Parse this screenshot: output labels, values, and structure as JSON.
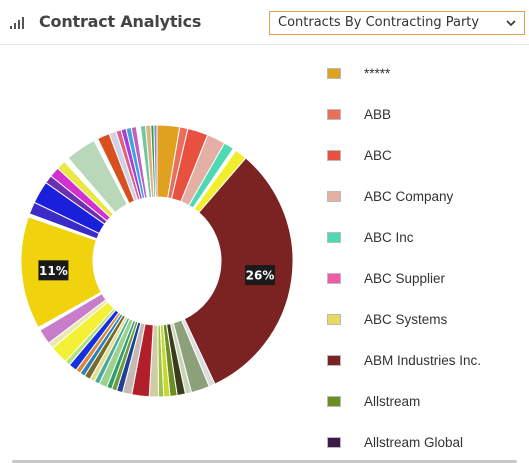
{
  "header": {
    "title": "Contract Analytics",
    "select_value": "Contracts By Contracting Party"
  },
  "chart_data": {
    "type": "pie",
    "donut": true,
    "slices": [
      {
        "label": "*****",
        "value": 2.2,
        "color": "#E0A020"
      },
      {
        "label": "ABB",
        "value": 0.8,
        "color": "#E8705A"
      },
      {
        "label": "ABC",
        "value": 2.0,
        "color": "#E8503F"
      },
      {
        "label": "ABC Company",
        "value": 1.8,
        "color": "#E4AFA5"
      },
      {
        "label": "ABC Inc",
        "value": 1.0,
        "color": "#4ED9B3"
      },
      {
        "label": "",
        "value": 0.3,
        "color": "#FFFFFF"
      },
      {
        "label": "ABC Systems",
        "value": 1.2,
        "color": "#F2EE2C"
      },
      {
        "label": "ABM Industries Inc.",
        "value": 26,
        "color": "#7B2222"
      },
      {
        "label": "",
        "value": 0.6,
        "color": "#DCDCDC"
      },
      {
        "label": "",
        "value": 1.8,
        "color": "#8CA07A"
      },
      {
        "label": "",
        "value": 0.6,
        "color": "#C8D6B8"
      },
      {
        "label": "",
        "value": 0.8,
        "color": "#3C3C1C"
      },
      {
        "label": "Allstream",
        "value": 0.7,
        "color": "#6A8E23"
      },
      {
        "label": "",
        "value": 0.6,
        "color": "#C8D830"
      },
      {
        "label": "",
        "value": 0.5,
        "color": "#9BC53D"
      },
      {
        "label": "",
        "value": 0.9,
        "color": "#D0CCA8"
      },
      {
        "label": "",
        "value": 1.7,
        "color": "#B21F2A"
      },
      {
        "label": "",
        "value": 0.9,
        "color": "#C5BAB3"
      },
      {
        "label": "",
        "value": 0.6,
        "color": "#1F3F99"
      },
      {
        "label": "",
        "value": 0.5,
        "color": "#6F9A3A"
      },
      {
        "label": "",
        "value": 0.5,
        "color": "#2E9E6B"
      },
      {
        "label": "",
        "value": 0.8,
        "color": "#9DD28E"
      },
      {
        "label": "",
        "value": 0.5,
        "color": "#4BA8A0"
      },
      {
        "label": "",
        "value": 0.5,
        "color": "#E0E090"
      },
      {
        "label": "",
        "value": 0.6,
        "color": "#7A6A2A"
      },
      {
        "label": "",
        "value": 0.5,
        "color": "#2C7FB8"
      },
      {
        "label": "",
        "value": 0.5,
        "color": "#D88A40"
      },
      {
        "label": "",
        "value": 0.8,
        "color": "#1530DD"
      },
      {
        "label": "",
        "value": 0.5,
        "color": "#B4E07A"
      },
      {
        "label": "",
        "value": 1.8,
        "color": "#F4F036"
      },
      {
        "label": "",
        "value": 0.6,
        "color": "#E8E8B0"
      },
      {
        "label": "",
        "value": 1.5,
        "color": "#C77DC9"
      },
      {
        "label": "",
        "value": 0.3,
        "color": "#FFFFFF"
      },
      {
        "label": "",
        "value": 11,
        "color": "#F0D30C"
      },
      {
        "label": "",
        "value": 0.3,
        "color": "#FFFFFF"
      },
      {
        "label": "",
        "value": 1.2,
        "color": "#3B2CC8"
      },
      {
        "label": "",
        "value": 2.2,
        "color": "#1A1FDB"
      },
      {
        "label": "",
        "value": 0.8,
        "color": "#6C2FB0"
      },
      {
        "label": "",
        "value": 1.0,
        "color": "#D330D0"
      },
      {
        "label": "",
        "value": 0.9,
        "color": "#E8E840"
      },
      {
        "label": "",
        "value": 0.5,
        "color": "#FFFFFF"
      },
      {
        "label": "",
        "value": 3.0,
        "color": "#B9D8B9"
      },
      {
        "label": "",
        "value": 0.4,
        "color": "#FFFFFF"
      },
      {
        "label": "",
        "value": 1.2,
        "color": "#D8501F"
      },
      {
        "label": "",
        "value": 0.7,
        "color": "#D0D0E8"
      },
      {
        "label": "",
        "value": 0.5,
        "color": "#E06080"
      },
      {
        "label": "",
        "value": 0.5,
        "color": "#A040E0"
      },
      {
        "label": "",
        "value": 0.5,
        "color": "#40A0E0"
      },
      {
        "label": "",
        "value": 0.5,
        "color": "#C060C0"
      },
      {
        "label": "",
        "value": 0.4,
        "color": "#FFFFFF"
      },
      {
        "label": "",
        "value": 0.5,
        "color": "#70C8A0"
      },
      {
        "label": "",
        "value": 0.5,
        "color": "#E0B080"
      },
      {
        "label": "",
        "value": 0.3,
        "color": "#30A040"
      },
      {
        "label": "",
        "value": 0.3,
        "color": "#9080E0"
      }
    ],
    "data_labels": [
      {
        "text": "26%",
        "slice_index": 7
      },
      {
        "text": "11%",
        "slice_index": 33
      }
    ],
    "legend": {
      "placement": "right",
      "entries": [
        {
          "label": "*****",
          "color": "#E0A020"
        },
        {
          "label": "ABB",
          "color": "#E8705A"
        },
        {
          "label": "ABC",
          "color": "#E8503F"
        },
        {
          "label": "ABC Company",
          "color": "#E4AFA5"
        },
        {
          "label": "ABC Inc",
          "color": "#4ED9B3"
        },
        {
          "label": "ABC Supplier",
          "color": "#F05BA8"
        },
        {
          "label": "ABC Systems",
          "color": "#E8D860"
        },
        {
          "label": "ABM Industries Inc.",
          "color": "#7B2222"
        },
        {
          "label": "Allstream",
          "color": "#6A8E23"
        },
        {
          "label": "Allstream Global",
          "color": "#3C1A4A"
        }
      ]
    }
  }
}
